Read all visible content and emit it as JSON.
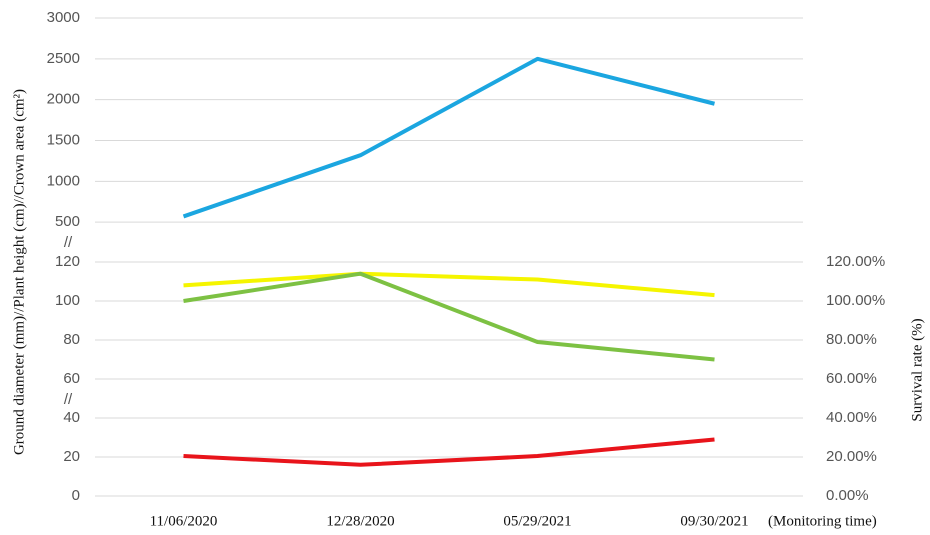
{
  "chart_data": {
    "type": "line",
    "categories": [
      "11/06/2020",
      "12/28/2020",
      "05/29/2021",
      "09/30/2021"
    ],
    "xlabel": "(Monitoring time)",
    "ylabel": "Ground diameter (mm)//Plant height (cm)//Crown area (cm²)",
    "y2label": "Survival rate (%)",
    "y_segments": [
      {
        "ylim": [
          0,
          120
        ],
        "yticks": [
          0,
          20,
          40,
          60,
          80,
          100,
          120
        ]
      },
      {
        "ylim": [
          0,
          3000
        ],
        "yticks": [
          500,
          1000,
          1500,
          2000,
          2500,
          3000
        ]
      }
    ],
    "break_marks": [
      "//",
      "//"
    ],
    "y2lim": [
      0,
      120
    ],
    "y2ticks": [
      {
        "value": 0,
        "label": "0.00%"
      },
      {
        "value": 20,
        "label": "20.00%"
      },
      {
        "value": 40,
        "label": "40.00%"
      },
      {
        "value": 60,
        "label": "60.00%"
      },
      {
        "value": 80,
        "label": "80.00%"
      },
      {
        "value": 100,
        "label": "100.00%"
      },
      {
        "value": 120,
        "label": "120.00%"
      }
    ],
    "grid": true,
    "series": [
      {
        "color": "#1ba6e0",
        "segment": 1,
        "values": [
          570,
          1320,
          2500,
          1950
        ]
      },
      {
        "color": "#f5f500",
        "segment": 0,
        "values": [
          108,
          114,
          111,
          103
        ]
      },
      {
        "color": "#7dc143",
        "segment": 0,
        "values": [
          100,
          114,
          79,
          70
        ]
      },
      {
        "color": "#e8141b",
        "segment": 0,
        "values": [
          20.5,
          16,
          20.5,
          29
        ]
      }
    ]
  }
}
